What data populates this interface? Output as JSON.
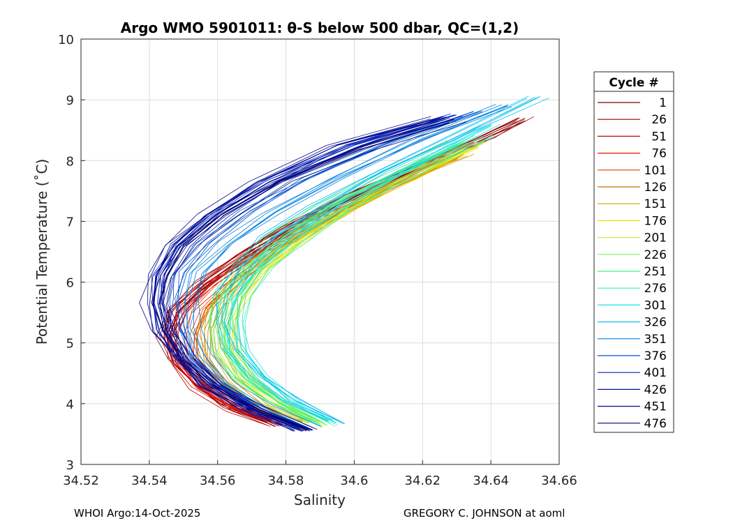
{
  "chart_data": {
    "type": "line",
    "title": "Argo WMO 5901011: θ-S below 500 dbar,  QC=(1,2)",
    "xlabel": "Salinity",
    "ylabel": "Potential Temperature (˚C)",
    "xlim": [
      34.52,
      34.66
    ],
    "ylim": [
      3,
      10
    ],
    "xticks": [
      34.52,
      34.54,
      34.56,
      34.58,
      34.6,
      34.62,
      34.64,
      34.66
    ],
    "xtick_labels": [
      "34.52",
      "34.54",
      "34.56",
      "34.58",
      "34.6",
      "34.62",
      "34.64",
      "34.66"
    ],
    "yticks": [
      3,
      4,
      5,
      6,
      7,
      8,
      9,
      10
    ],
    "ytick_labels": [
      "3",
      "4",
      "5",
      "6",
      "7",
      "8",
      "9",
      "10"
    ],
    "grid": true,
    "legend_title": "Cycle #",
    "legend_position": "right",
    "legend": [
      {
        "label": "1",
        "color": "#800000"
      },
      {
        "label": "26",
        "color": "#9a0000"
      },
      {
        "label": "51",
        "color": "#c30000"
      },
      {
        "label": "76",
        "color": "#e01000"
      },
      {
        "label": "101",
        "color": "#e84000"
      },
      {
        "label": "126",
        "color": "#c87000"
      },
      {
        "label": "151",
        "color": "#d0a000"
      },
      {
        "label": "176",
        "color": "#f0e000"
      },
      {
        "label": "201",
        "color": "#c8f040"
      },
      {
        "label": "226",
        "color": "#80f060"
      },
      {
        "label": "251",
        "color": "#40f080"
      },
      {
        "label": "276",
        "color": "#30f0b0"
      },
      {
        "label": "301",
        "color": "#20e0e0"
      },
      {
        "label": "326",
        "color": "#10c0f0"
      },
      {
        "label": "351",
        "color": "#0080e0"
      },
      {
        "label": "376",
        "color": "#0050d0"
      },
      {
        "label": "401",
        "color": "#0020c0"
      },
      {
        "label": "426",
        "color": "#0010a0"
      },
      {
        "label": "451",
        "color": "#000890"
      },
      {
        "label": "476",
        "color": "#000070"
      }
    ],
    "series": [
      {
        "name": "1",
        "color": "#800000",
        "points": [
          [
            34.578,
            3.65
          ],
          [
            34.565,
            3.95
          ],
          [
            34.556,
            4.3
          ],
          [
            34.549,
            4.7
          ],
          [
            34.546,
            5.1
          ],
          [
            34.548,
            5.5
          ],
          [
            34.556,
            5.9
          ],
          [
            34.568,
            6.4
          ],
          [
            34.582,
            6.9
          ],
          [
            34.6,
            7.4
          ],
          [
            34.62,
            7.9
          ],
          [
            34.64,
            8.4
          ],
          [
            34.65,
            8.65
          ]
        ]
      },
      {
        "name": "26",
        "color": "#9a0000",
        "points": [
          [
            34.577,
            3.7
          ],
          [
            34.564,
            4.0
          ],
          [
            34.555,
            4.35
          ],
          [
            34.549,
            4.75
          ],
          [
            34.547,
            5.15
          ],
          [
            34.549,
            5.55
          ],
          [
            34.557,
            6.0
          ],
          [
            34.569,
            6.45
          ],
          [
            34.584,
            6.95
          ],
          [
            34.602,
            7.45
          ],
          [
            34.622,
            7.95
          ],
          [
            34.64,
            8.4
          ],
          [
            34.65,
            8.7
          ]
        ]
      },
      {
        "name": "51",
        "color": "#c30000",
        "points": [
          [
            34.578,
            3.65
          ],
          [
            34.565,
            3.9
          ],
          [
            34.554,
            4.25
          ],
          [
            34.548,
            4.65
          ],
          [
            34.545,
            5.1
          ],
          [
            34.548,
            5.5
          ],
          [
            34.556,
            5.95
          ],
          [
            34.569,
            6.45
          ],
          [
            34.585,
            6.95
          ],
          [
            34.603,
            7.45
          ],
          [
            34.62,
            7.9
          ],
          [
            34.635,
            8.3
          ]
        ]
      },
      {
        "name": "76",
        "color": "#e01000",
        "points": [
          [
            34.579,
            3.7
          ],
          [
            34.566,
            3.95
          ],
          [
            34.556,
            4.3
          ],
          [
            34.55,
            4.7
          ],
          [
            34.548,
            5.1
          ],
          [
            34.551,
            5.5
          ],
          [
            34.559,
            5.95
          ],
          [
            34.571,
            6.4
          ],
          [
            34.586,
            6.9
          ],
          [
            34.604,
            7.4
          ],
          [
            34.622,
            7.85
          ]
        ]
      },
      {
        "name": "101",
        "color": "#e84000",
        "points": [
          [
            34.58,
            3.7
          ],
          [
            34.568,
            4.0
          ],
          [
            34.558,
            4.35
          ],
          [
            34.553,
            4.75
          ],
          [
            34.552,
            5.15
          ],
          [
            34.555,
            5.55
          ],
          [
            34.563,
            6.0
          ],
          [
            34.575,
            6.5
          ],
          [
            34.59,
            7.0
          ],
          [
            34.608,
            7.5
          ],
          [
            34.628,
            8.0
          ]
        ]
      },
      {
        "name": "126",
        "color": "#c87000",
        "points": [
          [
            34.582,
            3.7
          ],
          [
            34.57,
            4.0
          ],
          [
            34.561,
            4.35
          ],
          [
            34.556,
            4.75
          ],
          [
            34.555,
            5.2
          ],
          [
            34.558,
            5.6
          ],
          [
            34.566,
            6.05
          ],
          [
            34.578,
            6.55
          ],
          [
            34.593,
            7.05
          ],
          [
            34.61,
            7.55
          ],
          [
            34.63,
            8.05
          ]
        ]
      },
      {
        "name": "151",
        "color": "#d0a000",
        "points": [
          [
            34.585,
            3.7
          ],
          [
            34.573,
            4.0
          ],
          [
            34.564,
            4.4
          ],
          [
            34.559,
            4.8
          ],
          [
            34.558,
            5.2
          ],
          [
            34.561,
            5.65
          ],
          [
            34.568,
            6.1
          ],
          [
            34.58,
            6.6
          ],
          [
            34.595,
            7.1
          ],
          [
            34.612,
            7.6
          ],
          [
            34.632,
            8.1
          ]
        ]
      },
      {
        "name": "176",
        "color": "#f0e000",
        "points": [
          [
            34.587,
            3.7
          ],
          [
            34.576,
            4.0
          ],
          [
            34.567,
            4.4
          ],
          [
            34.562,
            4.85
          ],
          [
            34.562,
            5.3
          ],
          [
            34.566,
            5.75
          ],
          [
            34.573,
            6.2
          ],
          [
            34.584,
            6.7
          ],
          [
            34.598,
            7.2
          ],
          [
            34.614,
            7.7
          ],
          [
            34.634,
            8.2
          ]
        ]
      },
      {
        "name": "201",
        "color": "#c8f040",
        "points": [
          [
            34.589,
            3.65
          ],
          [
            34.578,
            4.0
          ],
          [
            34.569,
            4.4
          ],
          [
            34.564,
            4.85
          ],
          [
            34.563,
            5.3
          ],
          [
            34.566,
            5.75
          ],
          [
            34.573,
            6.25
          ],
          [
            34.584,
            6.75
          ],
          [
            34.598,
            7.25
          ],
          [
            34.615,
            7.75
          ],
          [
            34.636,
            8.3
          ]
        ]
      },
      {
        "name": "226",
        "color": "#80f060",
        "points": [
          [
            34.59,
            3.7
          ],
          [
            34.578,
            4.05
          ],
          [
            34.568,
            4.45
          ],
          [
            34.563,
            4.9
          ],
          [
            34.562,
            5.35
          ],
          [
            34.564,
            5.8
          ],
          [
            34.571,
            6.25
          ],
          [
            34.582,
            6.75
          ],
          [
            34.596,
            7.25
          ],
          [
            34.613,
            7.75
          ],
          [
            34.634,
            8.25
          ]
        ]
      },
      {
        "name": "251",
        "color": "#40f080",
        "points": [
          [
            34.59,
            3.7
          ],
          [
            34.577,
            4.05
          ],
          [
            34.567,
            4.45
          ],
          [
            34.561,
            4.9
          ],
          [
            34.559,
            5.35
          ],
          [
            34.561,
            5.8
          ],
          [
            34.567,
            6.25
          ],
          [
            34.577,
            6.75
          ],
          [
            34.591,
            7.25
          ],
          [
            34.608,
            7.75
          ],
          [
            34.63,
            8.3
          ]
        ]
      },
      {
        "name": "276",
        "color": "#30f0b0",
        "points": [
          [
            34.592,
            3.65
          ],
          [
            34.58,
            4.0
          ],
          [
            34.571,
            4.4
          ],
          [
            34.566,
            4.85
          ],
          [
            34.565,
            5.3
          ],
          [
            34.567,
            5.75
          ],
          [
            34.573,
            6.2
          ],
          [
            34.583,
            6.7
          ],
          [
            34.597,
            7.2
          ],
          [
            34.615,
            7.75
          ],
          [
            34.638,
            8.4
          ]
        ]
      },
      {
        "name": "301",
        "color": "#20e0e0",
        "points": [
          [
            34.594,
            3.7
          ],
          [
            34.582,
            4.05
          ],
          [
            34.573,
            4.45
          ],
          [
            34.567,
            4.9
          ],
          [
            34.566,
            5.35
          ],
          [
            34.567,
            5.8
          ],
          [
            34.572,
            6.25
          ],
          [
            34.582,
            6.75
          ],
          [
            34.596,
            7.25
          ],
          [
            34.614,
            7.8
          ],
          [
            34.64,
            8.6
          ]
        ]
      },
      {
        "name": "326",
        "color": "#10c0f0",
        "points": [
          [
            34.596,
            3.7
          ],
          [
            34.583,
            4.05
          ],
          [
            34.572,
            4.45
          ],
          [
            34.565,
            4.9
          ],
          [
            34.562,
            5.35
          ],
          [
            34.563,
            5.8
          ],
          [
            34.567,
            6.25
          ],
          [
            34.576,
            6.75
          ],
          [
            34.59,
            7.25
          ],
          [
            34.608,
            7.8
          ],
          [
            34.632,
            8.45
          ],
          [
            34.654,
            9.05
          ]
        ]
      },
      {
        "name": "351",
        "color": "#0080e0",
        "points": [
          [
            34.588,
            3.6
          ],
          [
            34.574,
            3.95
          ],
          [
            34.563,
            4.35
          ],
          [
            34.556,
            4.8
          ],
          [
            34.553,
            5.25
          ],
          [
            34.553,
            5.7
          ],
          [
            34.556,
            6.15
          ],
          [
            34.564,
            6.65
          ],
          [
            34.577,
            7.15
          ],
          [
            34.595,
            7.7
          ],
          [
            34.62,
            8.35
          ],
          [
            34.645,
            8.9
          ]
        ]
      },
      {
        "name": "376",
        "color": "#0050d0",
        "points": [
          [
            34.586,
            3.6
          ],
          [
            34.572,
            3.95
          ],
          [
            34.56,
            4.35
          ],
          [
            34.553,
            4.8
          ],
          [
            34.549,
            5.25
          ],
          [
            34.548,
            5.7
          ],
          [
            34.55,
            6.15
          ],
          [
            34.557,
            6.65
          ],
          [
            34.569,
            7.15
          ],
          [
            34.586,
            7.7
          ],
          [
            34.61,
            8.3
          ],
          [
            34.636,
            8.8
          ]
        ]
      },
      {
        "name": "401",
        "color": "#0020c0",
        "points": [
          [
            34.585,
            3.55
          ],
          [
            34.57,
            3.9
          ],
          [
            34.558,
            4.3
          ],
          [
            34.55,
            4.75
          ],
          [
            34.545,
            5.2
          ],
          [
            34.543,
            5.65
          ],
          [
            34.544,
            6.1
          ],
          [
            34.549,
            6.6
          ],
          [
            34.559,
            7.1
          ],
          [
            34.575,
            7.65
          ],
          [
            34.6,
            8.25
          ],
          [
            34.63,
            8.75
          ]
        ]
      },
      {
        "name": "426",
        "color": "#0010a0",
        "points": [
          [
            34.587,
            3.55
          ],
          [
            34.572,
            3.9
          ],
          [
            34.56,
            4.3
          ],
          [
            34.551,
            4.75
          ],
          [
            34.546,
            5.2
          ],
          [
            34.544,
            5.65
          ],
          [
            34.545,
            6.1
          ],
          [
            34.55,
            6.6
          ],
          [
            34.561,
            7.1
          ],
          [
            34.578,
            7.65
          ],
          [
            34.602,
            8.25
          ],
          [
            34.628,
            8.7
          ]
        ]
      },
      {
        "name": "451",
        "color": "#000890",
        "points": [
          [
            34.586,
            3.55
          ],
          [
            34.571,
            3.9
          ],
          [
            34.559,
            4.3
          ],
          [
            34.55,
            4.75
          ],
          [
            34.544,
            5.2
          ],
          [
            34.541,
            5.65
          ],
          [
            34.542,
            6.1
          ],
          [
            34.547,
            6.6
          ],
          [
            34.557,
            7.1
          ],
          [
            34.572,
            7.65
          ],
          [
            34.595,
            8.25
          ],
          [
            34.625,
            8.7
          ]
        ]
      },
      {
        "name": "476",
        "color": "#000070",
        "points": [
          [
            34.587,
            3.55
          ],
          [
            34.572,
            3.9
          ],
          [
            34.559,
            4.3
          ],
          [
            34.55,
            4.75
          ],
          [
            34.545,
            5.2
          ],
          [
            34.543,
            5.65
          ],
          [
            34.545,
            6.1
          ],
          [
            34.551,
            6.6
          ],
          [
            34.562,
            7.1
          ],
          [
            34.579,
            7.65
          ],
          [
            34.603,
            8.2
          ],
          [
            34.63,
            8.65
          ]
        ]
      }
    ]
  },
  "footer": {
    "left": "WHOI Argo:14-Oct-2025",
    "right": "GREGORY C. JOHNSON at aoml"
  }
}
